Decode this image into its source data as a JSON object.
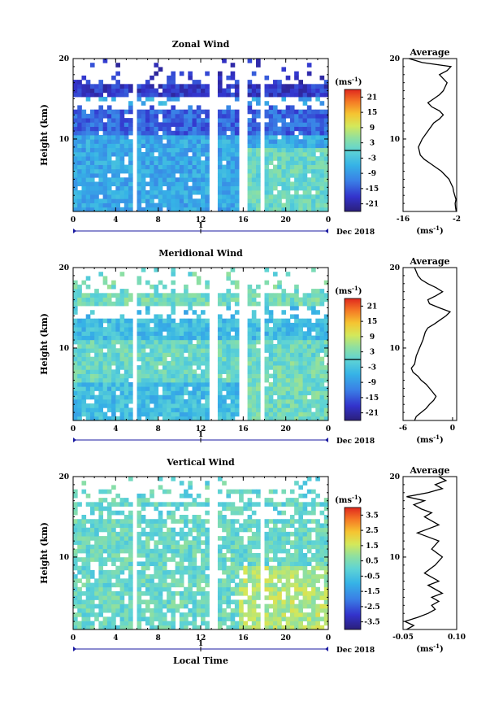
{
  "chart_data": [
    {
      "type": "heatmap",
      "title": "Zonal Wind",
      "ylabel": "Height (km)",
      "xlabel": "",
      "x_ticks": [
        "0",
        "4",
        "8",
        "12",
        "16",
        "20",
        "0"
      ],
      "y_ticks": [
        "20",
        "10"
      ],
      "xlim": [
        0,
        24
      ],
      "ylim": [
        1,
        20
      ],
      "date_marker": "1",
      "date_label": "Dec 2018",
      "colorbar": {
        "unit_base": "(ms",
        "unit_exp": "-1",
        "unit_close": ")",
        "ticks": [
          "21",
          "15",
          "9",
          "3",
          "-3",
          "-9",
          "-15",
          "-21"
        ],
        "range": [
          -24,
          24
        ],
        "zero_line": 0
      },
      "field": {
        "base_value": -7,
        "band_value": -14,
        "band_top": 14,
        "band_bottom": 10.5,
        "upper_value": -18,
        "active_value": 1
      },
      "gaps_hours": [
        [
          5.7,
          5.9
        ],
        [
          13.0,
          13.5
        ],
        [
          15.5,
          16.3
        ],
        [
          17.5,
          17.9
        ]
      ],
      "profile": {
        "title": "Average",
        "xlabel_base": "(ms",
        "xlabel_exp": "-1",
        "xlabel_close": ")",
        "x_ticks": [
          "-16",
          "-2"
        ],
        "xlim": [
          -16,
          -2
        ],
        "y_ticks": [
          "20",
          "10"
        ],
        "ylim": [
          1,
          20
        ],
        "x": [
          -2.1,
          -2.3,
          -2.4,
          -2.2,
          -2.5,
          -2.8,
          -3.0,
          -3.5,
          -4.0,
          -5.0,
          -6.0,
          -7.5,
          -9.0,
          -10.5,
          -11.5,
          -12.0,
          -11.0,
          -9.5,
          -8.0,
          -6.5,
          -5.5,
          -6.5,
          -8.5,
          -9.5,
          -8.0,
          -6.5,
          -5.5,
          -5.0,
          -4.5,
          -5.5,
          -6.5,
          -4.5,
          -3.5,
          -11.0,
          -14.5
        ],
        "y": [
          1.0,
          1.5,
          2.0,
          2.5,
          3.0,
          3.5,
          4.0,
          4.5,
          5.0,
          5.5,
          6.0,
          6.5,
          7.0,
          7.5,
          8.0,
          9.0,
          10.0,
          11.0,
          12.0,
          12.5,
          13.0,
          13.5,
          14.0,
          14.5,
          15.0,
          15.5,
          16.0,
          16.5,
          17.0,
          17.5,
          18.0,
          18.5,
          19.0,
          19.5,
          20.0
        ]
      }
    },
    {
      "type": "heatmap",
      "title": "Meridional Wind",
      "ylabel": "Height (km)",
      "xlabel": "",
      "x_ticks": [
        "0",
        "4",
        "8",
        "12",
        "16",
        "20",
        "0"
      ],
      "y_ticks": [
        "20",
        "10"
      ],
      "xlim": [
        0,
        24
      ],
      "ylim": [
        1,
        20
      ],
      "date_marker": "1",
      "date_label": "Dec 2018",
      "colorbar": {
        "unit_base": "(ms",
        "unit_exp": "-1",
        "unit_close": ")",
        "ticks": [
          "21",
          "15",
          "9",
          "3",
          "-3",
          "-9",
          "-15",
          "-21"
        ],
        "range": [
          -24,
          24
        ],
        "zero_line": 0
      },
      "field": {
        "base_value": -4,
        "band_value": 1,
        "band_top": 11,
        "band_bottom": 6,
        "upper_value": 2,
        "active_value": 2
      },
      "gaps_hours": [
        [
          5.7,
          5.9
        ],
        [
          13.0,
          13.5
        ],
        [
          15.5,
          16.3
        ],
        [
          17.5,
          17.9
        ]
      ],
      "profile": {
        "title": "Average",
        "xlabel_base": "(ms",
        "xlabel_exp": "-1",
        "xlabel_close": ")",
        "x_ticks": [
          "-6",
          "0"
        ],
        "xlim": [
          -6,
          0.5
        ],
        "y_ticks": [
          "20",
          "10"
        ],
        "ylim": [
          1,
          20
        ],
        "x": [
          -4.6,
          -4.4,
          -3.8,
          -3.2,
          -2.8,
          -2.3,
          -2.0,
          -2.4,
          -2.8,
          -3.2,
          -3.8,
          -4.2,
          -4.8,
          -5.0,
          -4.6,
          -4.4,
          -4.0,
          -3.6,
          -3.3,
          -3.0,
          -2.2,
          -1.5,
          -0.8,
          -0.3,
          -1.6,
          -2.8,
          -3.0,
          -2.0,
          -1.2,
          -2.0,
          -3.0,
          -3.8,
          -4.2,
          -4.4,
          -4.6
        ],
        "y": [
          1.0,
          1.5,
          2.0,
          2.5,
          3.0,
          3.5,
          4.0,
          4.5,
          5.0,
          5.5,
          6.0,
          6.5,
          7.0,
          7.5,
          8.0,
          9.0,
          10.0,
          11.0,
          12.0,
          12.5,
          13.0,
          13.5,
          14.0,
          14.5,
          15.0,
          15.5,
          16.0,
          16.5,
          17.0,
          17.5,
          18.0,
          18.5,
          19.0,
          19.5,
          20.0
        ]
      }
    },
    {
      "type": "heatmap",
      "title": "Vertical Wind",
      "ylabel": "Height (km)",
      "xlabel": "Local Time",
      "x_ticks": [
        "0",
        "4",
        "8",
        "12",
        "16",
        "20",
        "0"
      ],
      "y_ticks": [
        "20",
        "10"
      ],
      "xlim": [
        0,
        24
      ],
      "ylim": [
        1,
        20
      ],
      "date_marker": "1",
      "date_label": "Dec 2018",
      "colorbar": {
        "unit_base": "(ms",
        "unit_exp": "-1",
        "unit_close": ")",
        "ticks": [
          "3.5",
          "2.5",
          "1.5",
          "0.5",
          "-0.5",
          "-1.5",
          "-2.5",
          "-3.5"
        ],
        "range": [
          -4,
          4
        ],
        "zero_line": null
      },
      "field": {
        "base_value": 0.1,
        "band_value": 0.2,
        "band_top": 19,
        "band_bottom": 1,
        "upper_value": 0.1,
        "active_value": 1.2
      },
      "gaps_hours": [
        [
          5.7,
          5.9
        ],
        [
          13.0,
          13.4
        ],
        [
          15.1,
          15.3
        ],
        [
          17.6,
          17.9
        ]
      ],
      "profile": {
        "title": "Average",
        "xlabel_base": "(ms",
        "xlabel_exp": "-1",
        "xlabel_close": ")",
        "x_ticks": [
          "-0.05",
          "0.10"
        ],
        "xlim": [
          -0.05,
          0.1
        ],
        "y_ticks": [
          "20",
          "10"
        ],
        "ylim": [
          1,
          20
        ],
        "x": [
          -0.04,
          -0.02,
          -0.045,
          -0.01,
          0.02,
          0.04,
          0.03,
          0.05,
          0.03,
          0.06,
          0.04,
          0.02,
          0.05,
          0.03,
          0.01,
          0.04,
          0.06,
          0.03,
          0.05,
          0.02,
          -0.01,
          0.02,
          0.05,
          0.03,
          0.01,
          0.03,
          0.0,
          -0.02,
          0.01,
          -0.04,
          0.02,
          0.06,
          0.04,
          0.07,
          0.05
        ],
        "y": [
          1.0,
          1.5,
          2.0,
          2.5,
          3.0,
          3.5,
          4.0,
          4.5,
          5.0,
          5.5,
          6.0,
          6.5,
          7.0,
          7.5,
          8.0,
          9.0,
          10.0,
          11.0,
          12.0,
          12.5,
          13.0,
          13.5,
          14.0,
          14.5,
          15.0,
          15.5,
          16.0,
          16.5,
          17.0,
          17.5,
          18.0,
          18.5,
          19.0,
          19.5,
          20.0
        ]
      }
    }
  ]
}
